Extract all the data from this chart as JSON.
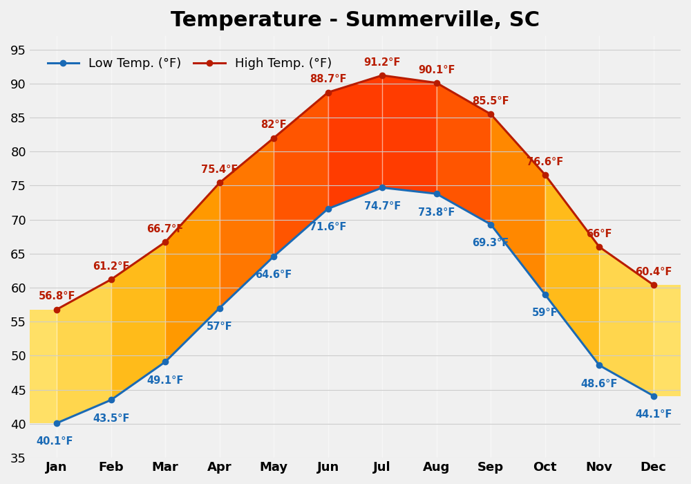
{
  "title": "Temperature - Summerville, SC",
  "months": [
    "Jan",
    "Feb",
    "Mar",
    "Apr",
    "May",
    "Jun",
    "Jul",
    "Aug",
    "Sep",
    "Oct",
    "Nov",
    "Dec"
  ],
  "low_temps": [
    40.1,
    43.5,
    49.1,
    57.0,
    64.6,
    71.6,
    74.7,
    73.8,
    69.3,
    59.0,
    48.6,
    44.1
  ],
  "high_temps": [
    56.8,
    61.2,
    66.7,
    75.4,
    82.0,
    88.7,
    91.2,
    90.1,
    85.5,
    76.6,
    66.0,
    60.4
  ],
  "low_labels": [
    "40.1°F",
    "43.5°F",
    "49.1°F",
    "57°F",
    "64.6°F",
    "71.6°F",
    "74.7°F",
    "73.8°F",
    "69.3°F",
    "59°F",
    "48.6°F",
    "44.1°F"
  ],
  "high_labels": [
    "56.8°F",
    "61.2°F",
    "66.7°F",
    "75.4°F",
    "82°F",
    "88.7°F",
    "91.2°F",
    "90.1°F",
    "85.5°F",
    "76.6°F",
    "66°F",
    "60.4°F"
  ],
  "low_color": "#1a6ab5",
  "high_color": "#b81c00",
  "low_label_color": "#1a6ab5",
  "high_label_color": "#b81c00",
  "column_colors": [
    "#ffe066",
    "#ffcc33",
    "#ffaa00",
    "#ff8800",
    "#ff6600",
    "#ff4400",
    "#ff3300",
    "#ff4400",
    "#ff6600",
    "#ffaa00",
    "#ffcc33",
    "#ffe066"
  ],
  "ylim": [
    35,
    97
  ],
  "yticks": [
    35,
    40,
    45,
    50,
    55,
    60,
    65,
    70,
    75,
    80,
    85,
    90,
    95
  ],
  "background_color": "#f0f0f0",
  "grid_color": "#cccccc",
  "legend_low": "Low Temp. (°F)",
  "legend_high": "High Temp. (°F)",
  "title_fontsize": 22,
  "label_fontsize": 10.5,
  "tick_fontsize": 13,
  "legend_fontsize": 13
}
